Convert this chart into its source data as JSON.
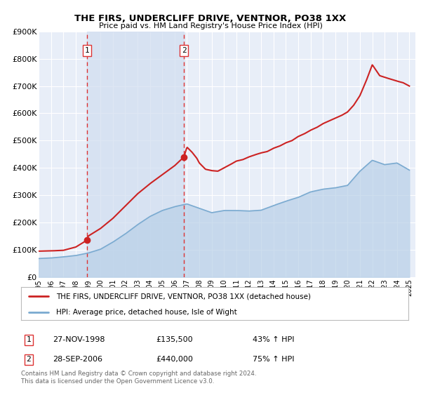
{
  "title": "THE FIRS, UNDERCLIFF DRIVE, VENTNOR, PO38 1XX",
  "subtitle": "Price paid vs. HM Land Registry's House Price Index (HPI)",
  "background_color": "#ffffff",
  "plot_bg_color": "#e8eef8",
  "grid_color": "#ffffff",
  "ylim": [
    0,
    900000
  ],
  "xlim_start": 1995.0,
  "xlim_end": 2025.5,
  "sale1_date": 1998.92,
  "sale1_price": 135500,
  "sale1_hpi_pct": "43% ↑ HPI",
  "sale1_date_str": "27-NOV-1998",
  "sale2_date": 2006.75,
  "sale2_price": 440000,
  "sale2_hpi_pct": "75% ↑ HPI",
  "sale2_date_str": "28-SEP-2006",
  "hpi_color": "#7aaad0",
  "hpi_fill_color": "#b8d0e8",
  "price_color": "#cc2222",
  "marker_color": "#cc2222",
  "vline_color": "#dd3333",
  "span_color": "#d0ddf0",
  "legend_label_price": "THE FIRS, UNDERCLIFF DRIVE, VENTNOR, PO38 1XX (detached house)",
  "legend_label_hpi": "HPI: Average price, detached house, Isle of Wight",
  "footer": "Contains HM Land Registry data © Crown copyright and database right 2024.\nThis data is licensed under the Open Government Licence v3.0.",
  "ytick_labels": [
    "£0",
    "£100K",
    "£200K",
    "£300K",
    "£400K",
    "£500K",
    "£600K",
    "£700K",
    "£800K",
    "£900K"
  ],
  "ytick_values": [
    0,
    100000,
    200000,
    300000,
    400000,
    500000,
    600000,
    700000,
    800000,
    900000
  ],
  "hpi_years": [
    1995,
    1996,
    1997,
    1998,
    1999,
    2000,
    2001,
    2002,
    2003,
    2004,
    2005,
    2006,
    2007,
    2008,
    2009,
    2010,
    2011,
    2012,
    2013,
    2014,
    2015,
    2016,
    2017,
    2018,
    2019,
    2020,
    2021,
    2022,
    2023,
    2024,
    2025
  ],
  "hpi_prices": [
    68000,
    70000,
    74000,
    79000,
    88000,
    102000,
    128000,
    158000,
    192000,
    222000,
    244000,
    258000,
    268000,
    252000,
    236000,
    244000,
    244000,
    242000,
    245000,
    262000,
    278000,
    292000,
    312000,
    322000,
    327000,
    336000,
    388000,
    428000,
    412000,
    418000,
    392000
  ],
  "price_years": [
    1995,
    1996,
    1997,
    1998,
    1998.92,
    1999,
    2000,
    2001,
    2002,
    2003,
    2004,
    2005,
    2006,
    2006.75,
    2007.0,
    2007.4,
    2007.8,
    2008,
    2008.5,
    2009,
    2009.5,
    2010,
    2010.5,
    2011,
    2011.5,
    2012,
    2012.5,
    2013,
    2013.5,
    2014,
    2014.5,
    2015,
    2015.5,
    2016,
    2016.5,
    2017,
    2017.5,
    2018,
    2018.5,
    2019,
    2019.5,
    2020,
    2020.5,
    2021,
    2021.5,
    2022.0,
    2022.3,
    2022.6,
    2023,
    2023.5,
    2024,
    2024.5,
    2025
  ],
  "price_prices": [
    95000,
    96000,
    98000,
    110000,
    135500,
    150000,
    178000,
    215000,
    260000,
    305000,
    342000,
    375000,
    408000,
    440000,
    476000,
    458000,
    435000,
    418000,
    395000,
    390000,
    388000,
    400000,
    412000,
    425000,
    430000,
    440000,
    448000,
    455000,
    460000,
    472000,
    480000,
    492000,
    500000,
    515000,
    525000,
    538000,
    548000,
    562000,
    572000,
    582000,
    592000,
    605000,
    630000,
    665000,
    718000,
    778000,
    758000,
    738000,
    732000,
    725000,
    718000,
    712000,
    700000
  ]
}
